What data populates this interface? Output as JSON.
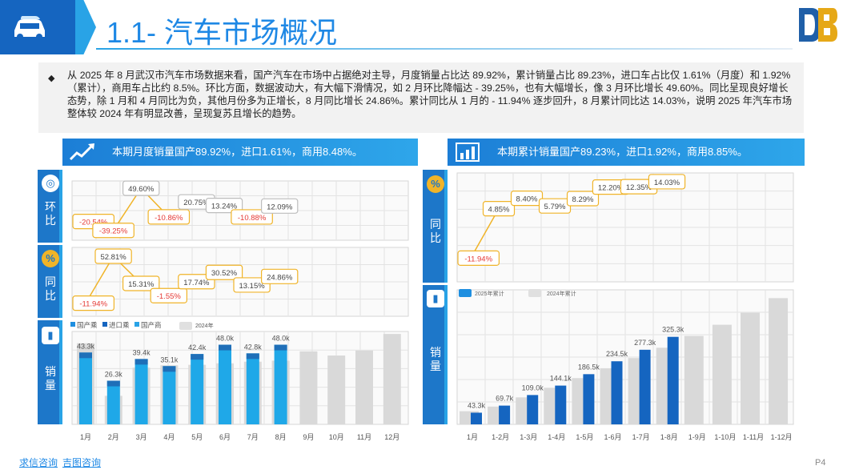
{
  "header": {
    "title": "1.1- 汽车市场概况"
  },
  "intro": {
    "text": "从 2025 年 8 月武汉市汽车市场数据来看，国产汽车在市场中占据绝对主导，月度销量占比达 89.92%，累计销量占比 89.23%，进口车占比仅 1.61%（月度）和 1.92%（累计），商用车占比约 8.5%。环比方面，数据波动大，有大幅下滑情况，如 2 月环比降幅达 - 39.25%，也有大幅增长，像 3 月环比增长 49.60%。同比呈现良好增长态势，除 1 月和 4 月同比为负，其他月份多为正增长，8 月同比增长 24.86%。累计同比从 1 月的 - 11.94% 逐步回升，8 月累计同比达 14.03%，说明 2025 年汽车市场整体较 2024 年有明显改善，呈现复苏且增长的趋势。"
  },
  "left": {
    "banner": "本期月度销量国产89.92%，进口1.61%，商用8.48%。",
    "side": {
      "mom": "环比",
      "yoy": "同比",
      "sales": "销量"
    }
  },
  "right": {
    "banner": "本期累计销量国产89.23%，进口1.92%，商用8.85%。",
    "side": {
      "yoy": "同比",
      "sales": "销量"
    }
  },
  "footer": {
    "brand1": "求信咨询",
    "brand2": "吉图咨询",
    "page": "P4"
  },
  "colors": {
    "primary": "#1d77c9",
    "accent": "#29a3e6",
    "bar2025": "#1f8fe0",
    "bar2024": "#d9d9d9",
    "neg": "#e53935",
    "gold": "#f0b429"
  },
  "chart_data": [
    {
      "type": "line",
      "name": "月度环比",
      "categories": [
        "1月",
        "2月",
        "3月",
        "4月",
        "5月",
        "6月",
        "7月",
        "8月"
      ],
      "labels": [
        "-20.54%",
        "-39.25%",
        "49.60%",
        "-10.86%",
        "20.75%",
        "13.24%",
        "-10.88%",
        "12.09%"
      ],
      "values": [
        -20.54,
        -39.25,
        49.6,
        -10.86,
        20.75,
        13.24,
        -10.88,
        12.09
      ]
    },
    {
      "type": "line",
      "name": "月度同比",
      "categories": [
        "1月",
        "2月",
        "3月",
        "4月",
        "5月",
        "6月",
        "7月",
        "8月"
      ],
      "labels": [
        "-11.94%",
        "52.81%",
        "15.31%",
        "-1.55%",
        "17.74%",
        "30.52%",
        "13.15%",
        "24.86%"
      ],
      "values": [
        -11.94,
        52.81,
        15.31,
        -1.55,
        17.74,
        30.52,
        13.15,
        24.86
      ]
    },
    {
      "type": "bar",
      "name": "月度销量",
      "categories": [
        "1月",
        "2月",
        "3月",
        "4月",
        "5月",
        "6月",
        "7月",
        "8月",
        "9月",
        "10月",
        "11月",
        "12月"
      ],
      "legend": [
        "国产乘",
        "进口乘",
        "国产商",
        "2024年"
      ],
      "labels": [
        "43.3k",
        "26.3k",
        "39.4k",
        "35.1k",
        "42.4k",
        "48.0k",
        "42.8k",
        "48.0k"
      ],
      "series": [
        {
          "name": "2025",
          "values": [
            43.3,
            26.3,
            39.4,
            35.1,
            42.4,
            48.0,
            42.8,
            48.0,
            null,
            null,
            null,
            null
          ]
        },
        {
          "name": "2024年",
          "values": [
            48.9,
            17.2,
            34.2,
            35.6,
            35.9,
            36.8,
            37.8,
            38.4,
            44.0,
            41.5,
            44.5,
            54.5
          ]
        }
      ]
    },
    {
      "type": "line",
      "name": "累计同比",
      "categories": [
        "1月",
        "1-2月",
        "1-3月",
        "1-4月",
        "1-5月",
        "1-6月",
        "1-7月",
        "1-8月"
      ],
      "labels": [
        "-11.94%",
        "4.85%",
        "8.40%",
        "5.79%",
        "8.29%",
        "12.20%",
        "12.35%",
        "14.03%"
      ],
      "values": [
        -11.94,
        4.85,
        8.4,
        5.79,
        8.29,
        12.2,
        12.35,
        14.03
      ]
    },
    {
      "type": "bar",
      "name": "累计销量",
      "categories": [
        "1月",
        "1-2月",
        "1-3月",
        "1-4月",
        "1-5月",
        "1-6月",
        "1-7月",
        "1-8月",
        "1-9月",
        "1-10月",
        "1-11月",
        "1-12月"
      ],
      "legend": [
        "2025年累计",
        "2024年累计"
      ],
      "labels": [
        "43.3k",
        "69.7k",
        "109.0k",
        "144.1k",
        "186.5k",
        "234.5k",
        "277.3k",
        "325.3k"
      ],
      "series": [
        {
          "name": "2025年累计",
          "values": [
            43.3,
            69.7,
            109.0,
            144.1,
            186.5,
            234.5,
            277.3,
            325.3,
            null,
            null,
            null,
            null
          ]
        },
        {
          "name": "2024年累计",
          "values": [
            48.9,
            66.1,
            100.3,
            135.9,
            171.8,
            208.6,
            246.4,
            284.8,
            328.8,
            370.3,
            414.8,
            469.3
          ]
        }
      ]
    }
  ]
}
